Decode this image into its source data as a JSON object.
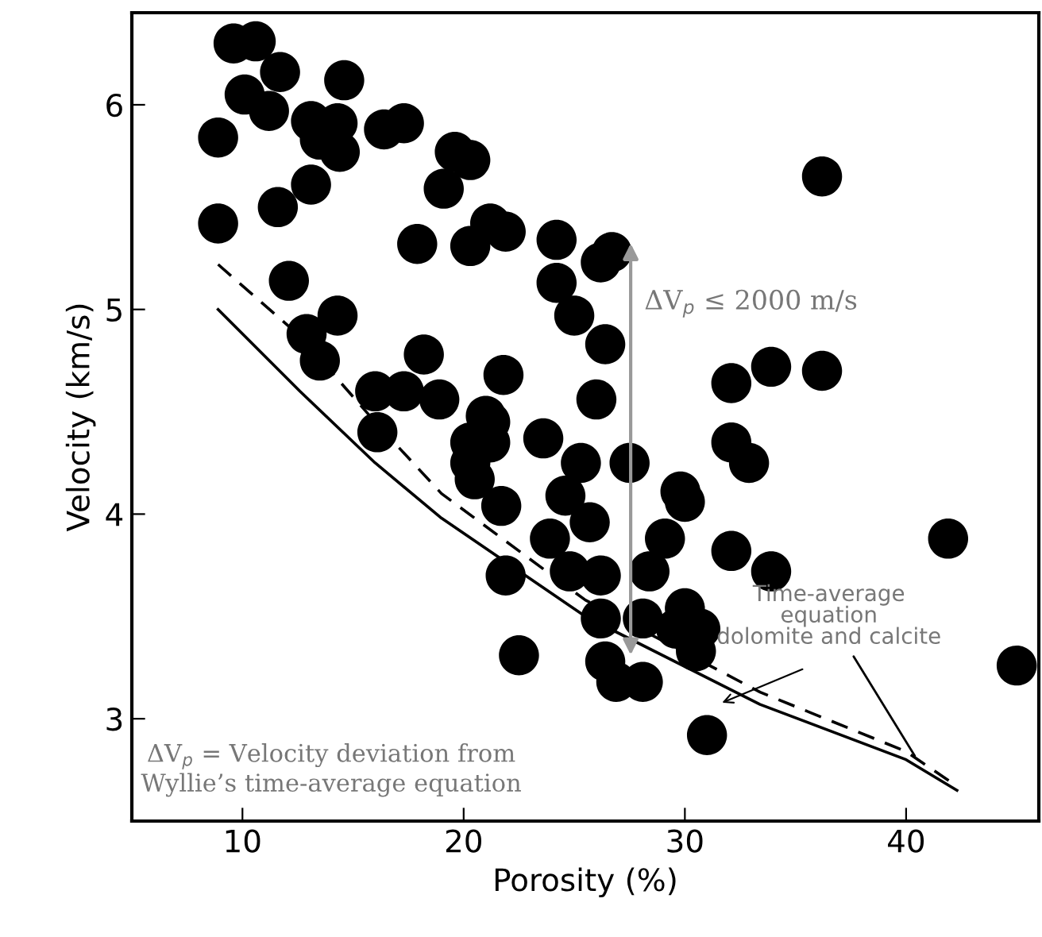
{
  "chart_data": {
    "type": "scatter",
    "xlabel": "Porosity (%)",
    "ylabel": "Velocity (km/s)",
    "xlim": [
      5,
      46
    ],
    "ylim": [
      2.5,
      6.45
    ],
    "xticks": [
      10,
      20,
      30,
      40
    ],
    "yticks": [
      3,
      4,
      5,
      6
    ],
    "grid": false,
    "legend": false,
    "series": [
      {
        "marker": "circle",
        "color": "#000000",
        "x": [
          9.6,
          10.6,
          11.7,
          14.6,
          10.1,
          11.2,
          8.9,
          13.1,
          14.3,
          13.5,
          14.4,
          16.4,
          17.3,
          19.6,
          20.3,
          19.1,
          13.1,
          11.6,
          8.9,
          17.9,
          20.3,
          21.2,
          21.9,
          12.1,
          14.3,
          12.9,
          13.5,
          18.2,
          16.0,
          17.3,
          18.9,
          21.8,
          16.1,
          21.2,
          20.3,
          24.2,
          24.2,
          26.2,
          26.7,
          25.0,
          26.4,
          26.0,
          21.0,
          21.2,
          23.6,
          20.5,
          25.3,
          27.5,
          29.8,
          21.7,
          23.9,
          25.7,
          21.9,
          22.5,
          26.2,
          26.4,
          28.1,
          26.9,
          30.0,
          29.1,
          30.0,
          30.5,
          31.0,
          24.6,
          28.1,
          26.2,
          29.6,
          24.8,
          20.3,
          36.2,
          36.2,
          33.9,
          32.1,
          32.1,
          32.9,
          32.1,
          33.9,
          41.9,
          45.0,
          30.7,
          28.4
        ],
        "values": [
          6.3,
          6.31,
          6.16,
          6.12,
          6.05,
          5.97,
          5.84,
          5.92,
          5.91,
          5.83,
          5.77,
          5.88,
          5.91,
          5.77,
          5.73,
          5.59,
          5.61,
          5.5,
          5.42,
          5.32,
          5.31,
          5.42,
          5.38,
          5.14,
          4.97,
          4.88,
          4.75,
          4.78,
          4.6,
          4.6,
          4.56,
          4.68,
          4.4,
          4.45,
          4.25,
          5.34,
          5.13,
          5.23,
          5.28,
          4.97,
          4.83,
          4.56,
          4.48,
          4.35,
          4.37,
          4.17,
          4.25,
          4.25,
          4.11,
          4.04,
          3.88,
          3.96,
          3.7,
          3.31,
          3.7,
          3.28,
          3.18,
          3.18,
          4.06,
          3.88,
          3.54,
          3.33,
          2.92,
          4.09,
          3.49,
          3.49,
          3.44,
          3.72,
          4.35,
          5.65,
          4.7,
          4.72,
          4.64,
          4.35,
          4.25,
          3.82,
          3.72,
          3.88,
          3.26,
          3.44,
          3.72
        ]
      },
      {
        "type": "line",
        "marker": "none",
        "color": "#000000",
        "line_style": "solid",
        "x": [
          8.9,
          12.6,
          16,
          19,
          25.5,
          33.4,
          40,
          42.3
        ],
        "values": [
          5.0,
          4.6,
          4.25,
          3.98,
          3.5,
          3.07,
          2.8,
          2.65
        ]
      },
      {
        "type": "line",
        "marker": "none",
        "color": "#000000",
        "line_style": "dashed",
        "x": [
          8.9,
          12.6,
          16,
          19,
          25.5,
          33.4,
          40,
          42.3
        ],
        "values": [
          5.22,
          4.87,
          4.45,
          4.1,
          3.58,
          3.13,
          2.84,
          2.67
        ]
      }
    ],
    "annotations": [
      "ΔV$_{p}$ ≤ 2000 m/s",
      {
        "text": "Time-average\nequation\ndolomite and calcite",
        "x": 40.5,
        "y": 2.8
      },
      "ΔV$_{p}$ = Velocity deviation from\nWyllie’s time-average equation"
    ]
  }
}
